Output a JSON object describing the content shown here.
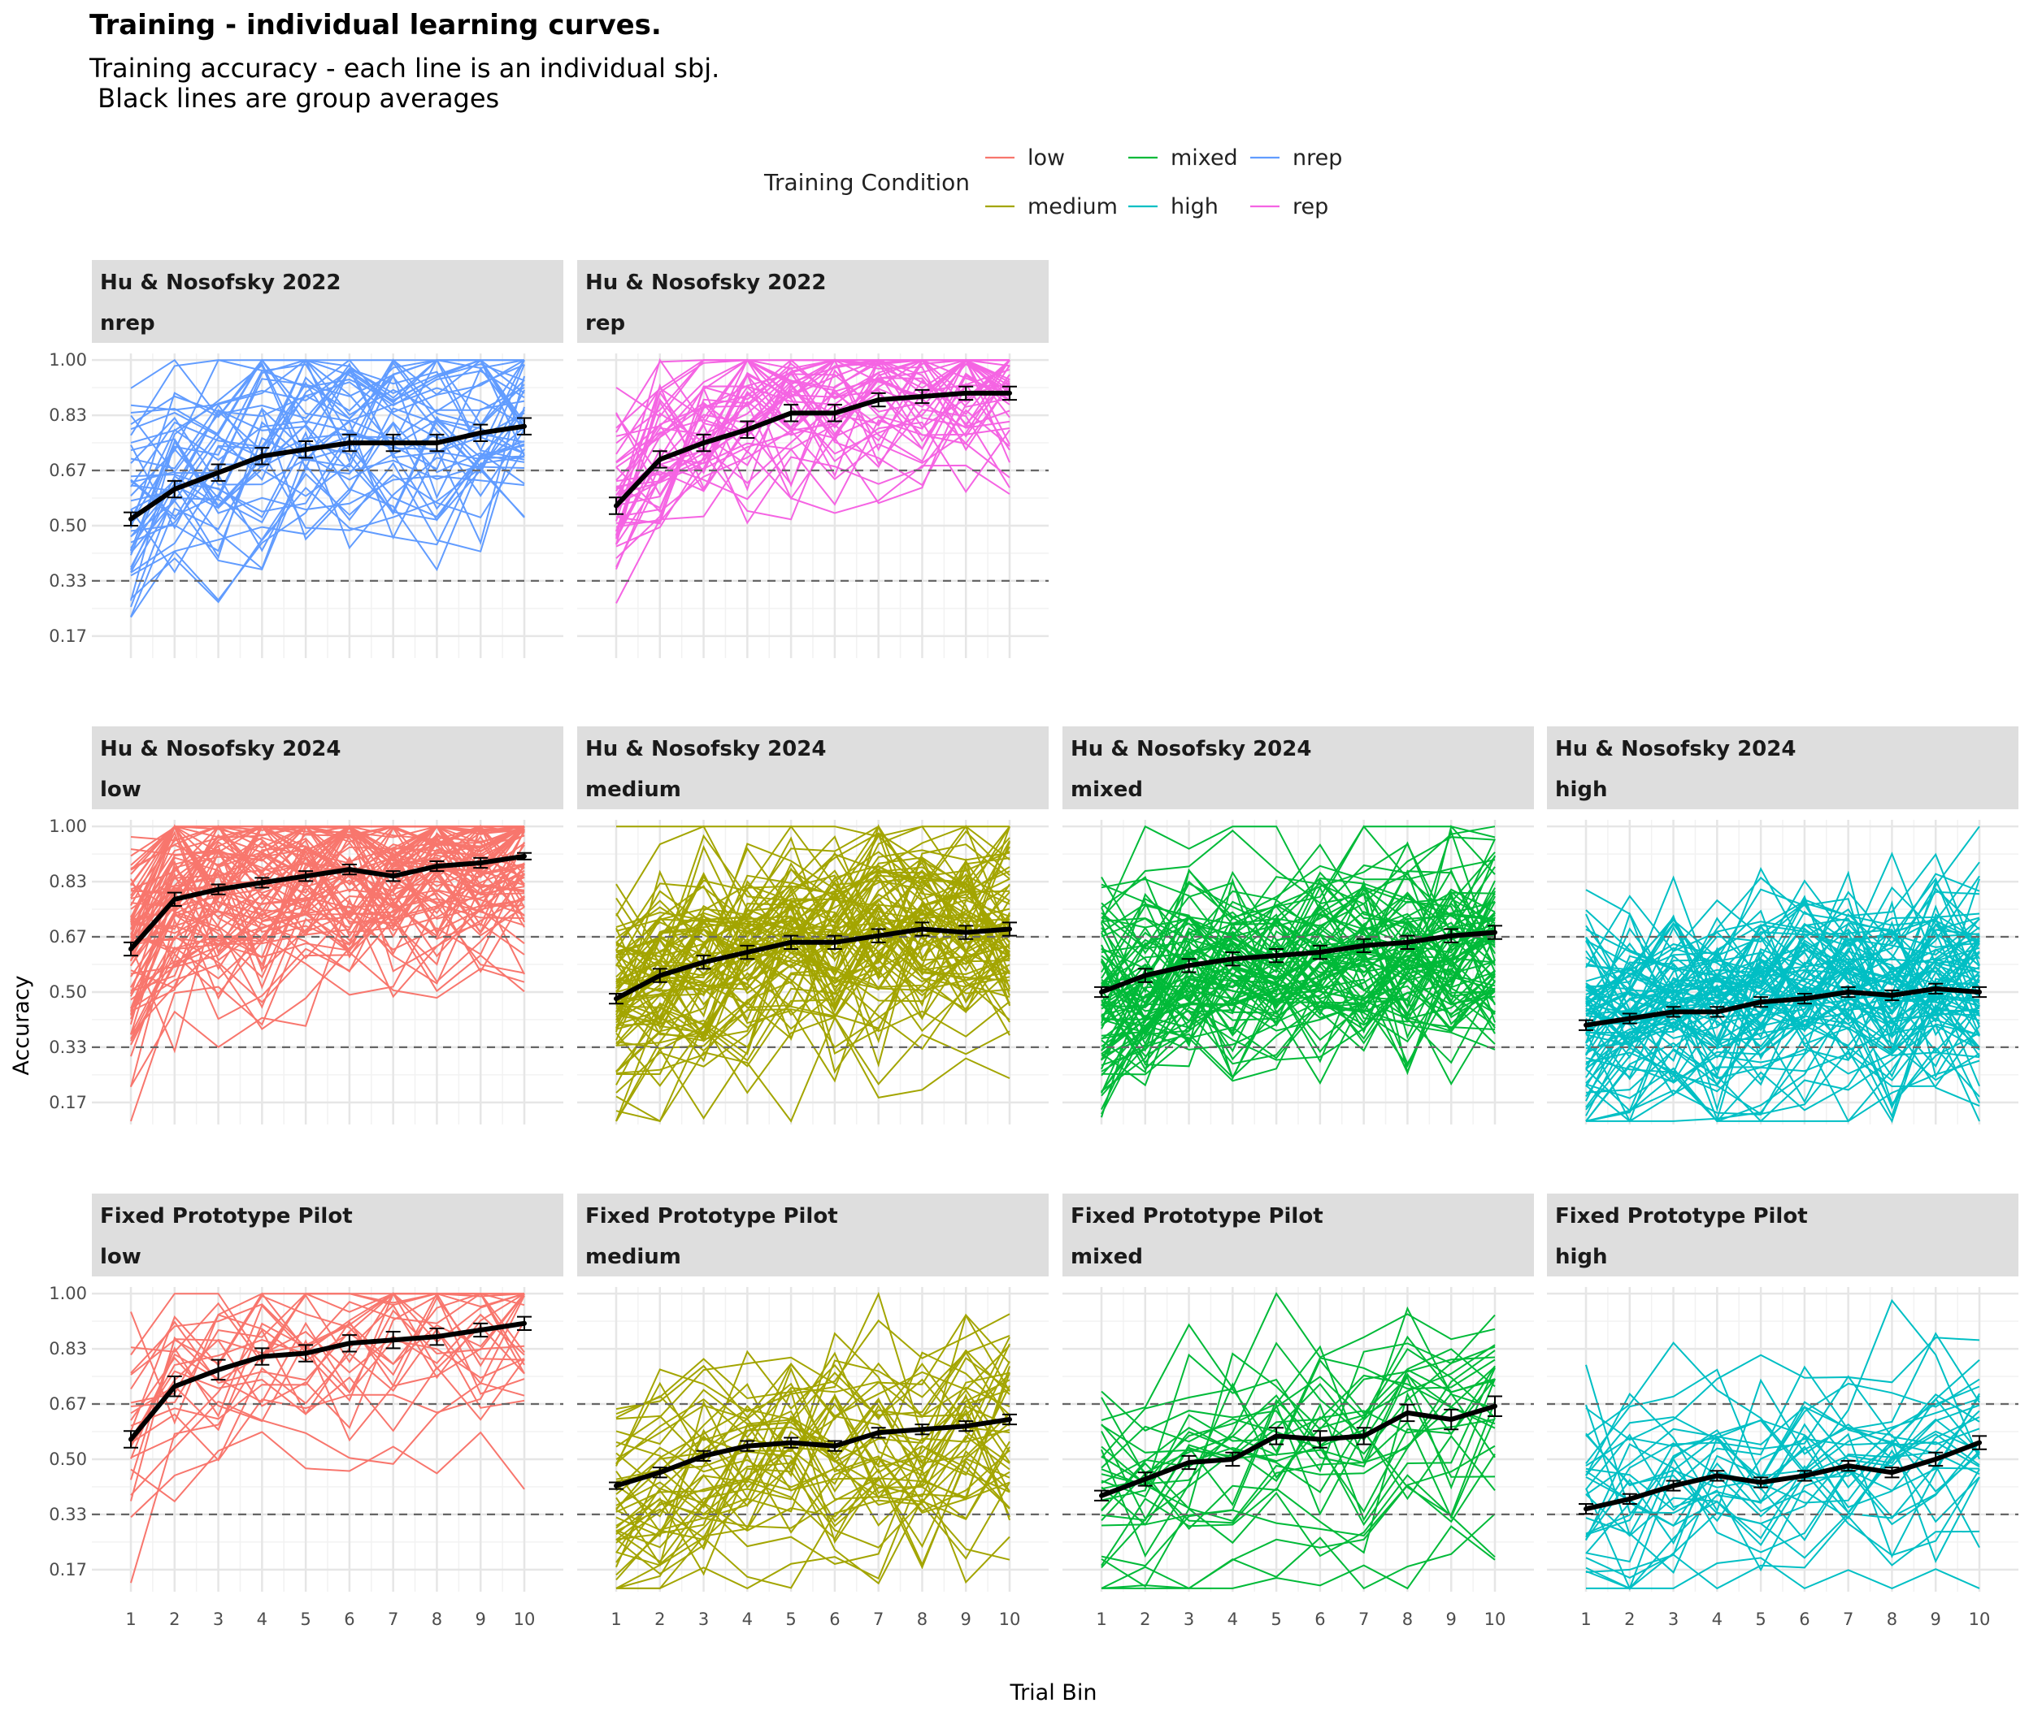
{
  "chart_data": {
    "type": "line",
    "title": "Training - individual learning curves.",
    "subtitle": [
      "Training accuracy - each line is an individual sbj.",
      " Black lines are group averages"
    ],
    "xlabel": "Trial Bin",
    "ylabel": "Accuracy",
    "xlim": [
      1,
      10
    ],
    "ylim": [
      0.1,
      1.02
    ],
    "x_ticks": [
      "1",
      "2",
      "3",
      "4",
      "5",
      "6",
      "7",
      "8",
      "9",
      "10"
    ],
    "y_ticks": [
      "0.17",
      "0.33",
      "0.50",
      "0.67",
      "0.83",
      "1.00"
    ],
    "y_tick_values": [
      0.1667,
      0.3333,
      0.5,
      0.6667,
      0.8333,
      1.0
    ],
    "reference_lines": [
      0.3333,
      0.6667
    ],
    "grid": true,
    "legend": {
      "title": "Training Condition",
      "placement": "top",
      "entries": [
        {
          "label": "low",
          "color": "#F8766D"
        },
        {
          "label": "medium",
          "color": "#A3A500"
        },
        {
          "label": "mixed",
          "color": "#00BA38"
        },
        {
          "label": "high",
          "color": "#00BFC4"
        },
        {
          "label": "nrep",
          "color": "#619CFF"
        },
        {
          "label": "rep",
          "color": "#F564E3"
        }
      ]
    },
    "panels": [
      {
        "id": "hn22-nrep",
        "row": 0,
        "col": 0,
        "study": "Hu & Nosofsky 2022",
        "condition": "nrep",
        "color": "#619CFF",
        "n_subjects": 45,
        "seed": 11,
        "mean": [
          0.52,
          0.61,
          0.66,
          0.71,
          0.73,
          0.75,
          0.75,
          0.75,
          0.78,
          0.8
        ],
        "se": [
          0.02,
          0.025,
          0.025,
          0.025,
          0.025,
          0.025,
          0.025,
          0.025,
          0.025,
          0.025
        ]
      },
      {
        "id": "hn22-rep",
        "row": 0,
        "col": 1,
        "study": "Hu & Nosofsky 2022",
        "condition": "rep",
        "color": "#F564E3",
        "n_subjects": 45,
        "seed": 23,
        "mean": [
          0.56,
          0.7,
          0.75,
          0.79,
          0.84,
          0.84,
          0.88,
          0.89,
          0.9,
          0.9
        ],
        "se": [
          0.025,
          0.025,
          0.025,
          0.025,
          0.025,
          0.025,
          0.02,
          0.02,
          0.02,
          0.02
        ]
      },
      {
        "id": "hn24-low",
        "row": 1,
        "col": 0,
        "study": "Hu & Nosofsky 2024",
        "condition": "low",
        "color": "#F8766D",
        "n_subjects": 85,
        "seed": 31,
        "mean": [
          0.63,
          0.78,
          0.81,
          0.83,
          0.85,
          0.87,
          0.85,
          0.88,
          0.89,
          0.91
        ],
        "se": [
          0.02,
          0.02,
          0.015,
          0.015,
          0.015,
          0.015,
          0.015,
          0.015,
          0.015,
          0.01
        ]
      },
      {
        "id": "hn24-medium",
        "row": 1,
        "col": 1,
        "study": "Hu & Nosofsky 2024",
        "condition": "medium",
        "color": "#A3A500",
        "n_subjects": 85,
        "seed": 37,
        "mean": [
          0.48,
          0.55,
          0.59,
          0.62,
          0.65,
          0.65,
          0.67,
          0.69,
          0.68,
          0.69
        ],
        "se": [
          0.015,
          0.02,
          0.02,
          0.02,
          0.02,
          0.02,
          0.02,
          0.02,
          0.02,
          0.02
        ]
      },
      {
        "id": "hn24-mixed",
        "row": 1,
        "col": 2,
        "study": "Hu & Nosofsky 2024",
        "condition": "mixed",
        "color": "#00BA38",
        "n_subjects": 85,
        "seed": 41,
        "mean": [
          0.5,
          0.55,
          0.58,
          0.6,
          0.61,
          0.62,
          0.64,
          0.65,
          0.67,
          0.68
        ],
        "se": [
          0.015,
          0.02,
          0.02,
          0.02,
          0.02,
          0.02,
          0.02,
          0.02,
          0.02,
          0.02
        ]
      },
      {
        "id": "hn24-high",
        "row": 1,
        "col": 3,
        "study": "Hu & Nosofsky 2024",
        "condition": "high",
        "color": "#00BFC4",
        "n_subjects": 85,
        "seed": 43,
        "mean": [
          0.4,
          0.42,
          0.44,
          0.44,
          0.47,
          0.48,
          0.5,
          0.49,
          0.51,
          0.5
        ],
        "se": [
          0.015,
          0.015,
          0.015,
          0.015,
          0.015,
          0.015,
          0.015,
          0.015,
          0.015,
          0.015
        ]
      },
      {
        "id": "fpp-low",
        "row": 2,
        "col": 0,
        "study": "Fixed Prototype Pilot",
        "condition": "low",
        "color": "#F8766D",
        "n_subjects": 25,
        "seed": 53,
        "mean": [
          0.56,
          0.72,
          0.77,
          0.81,
          0.82,
          0.85,
          0.86,
          0.87,
          0.89,
          0.91
        ],
        "se": [
          0.025,
          0.03,
          0.03,
          0.025,
          0.025,
          0.025,
          0.025,
          0.025,
          0.02,
          0.02
        ]
      },
      {
        "id": "fpp-medium",
        "row": 2,
        "col": 1,
        "study": "Fixed Prototype Pilot",
        "condition": "medium",
        "color": "#A3A500",
        "n_subjects": 45,
        "seed": 59,
        "mean": [
          0.42,
          0.46,
          0.51,
          0.54,
          0.55,
          0.54,
          0.58,
          0.59,
          0.6,
          0.62
        ],
        "se": [
          0.01,
          0.015,
          0.015,
          0.015,
          0.015,
          0.015,
          0.015,
          0.015,
          0.015,
          0.015
        ]
      },
      {
        "id": "fpp-mixed",
        "row": 2,
        "col": 2,
        "study": "Fixed Prototype Pilot",
        "condition": "mixed",
        "color": "#00BA38",
        "n_subjects": 30,
        "seed": 61,
        "mean": [
          0.39,
          0.44,
          0.49,
          0.5,
          0.57,
          0.56,
          0.57,
          0.64,
          0.62,
          0.66
        ],
        "se": [
          0.015,
          0.02,
          0.02,
          0.02,
          0.025,
          0.025,
          0.025,
          0.025,
          0.03,
          0.03
        ]
      },
      {
        "id": "fpp-high",
        "row": 2,
        "col": 3,
        "study": "Fixed Prototype Pilot",
        "condition": "high",
        "color": "#00BFC4",
        "n_subjects": 30,
        "seed": 67,
        "mean": [
          0.35,
          0.38,
          0.42,
          0.45,
          0.43,
          0.45,
          0.48,
          0.46,
          0.5,
          0.55
        ],
        "se": [
          0.015,
          0.015,
          0.015,
          0.015,
          0.015,
          0.015,
          0.015,
          0.015,
          0.02,
          0.02
        ]
      }
    ]
  }
}
